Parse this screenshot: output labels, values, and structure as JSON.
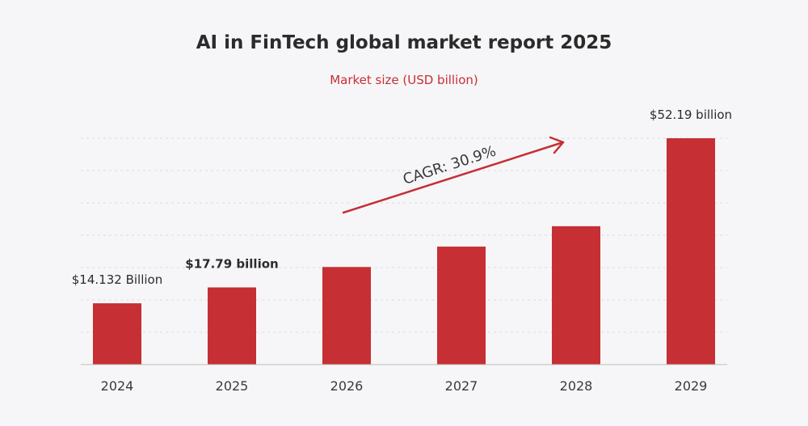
{
  "chart_data": {
    "type": "bar",
    "title": "AI in FinTech global market report 2025",
    "subtitle": "Market size (USD billion)",
    "categories": [
      "2024",
      "2025",
      "2026",
      "2027",
      "2028",
      "2029"
    ],
    "values": [
      14.132,
      17.79,
      22.5,
      27.2,
      31.9,
      52.19
    ],
    "value_labels": [
      "$14.132 Billion",
      "$17.79 billion",
      "",
      "",
      "",
      "$52.19 billion"
    ],
    "ylim": [
      0,
      52.19
    ],
    "grid": true,
    "annotation": "CAGR: 30.9%",
    "colors": {
      "bar": "#c62f33",
      "subtitle": "#c62f33",
      "highlight_label": "#a783c9",
      "text": "#2b2b2b",
      "grid": "#dcdcdc",
      "arrow": "#c62f33"
    }
  }
}
